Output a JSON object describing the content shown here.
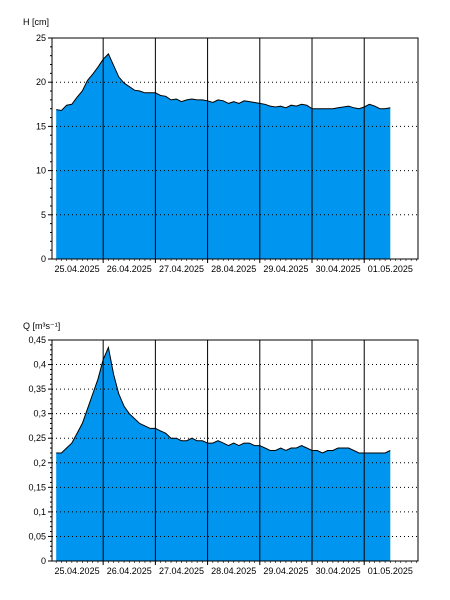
{
  "chart_data": [
    {
      "type": "area",
      "ylabel": "H [cm]",
      "ylim": [
        0,
        25
      ],
      "yticks": [
        0,
        5,
        10,
        15,
        20,
        25
      ],
      "ytick_labels": [
        "0",
        "5",
        "10",
        "15",
        "20",
        "25"
      ],
      "xticks": [
        "25.04.2025",
        "26.04.2025",
        "27.04.2025",
        "28.04.2025",
        "29.04.2025",
        "30.04.2025",
        "01.05.2025"
      ],
      "xlim_days": [
        -0.08,
        6.93
      ],
      "x_days": [
        0.0,
        0.1,
        0.2,
        0.3,
        0.4,
        0.5,
        0.6,
        0.7,
        0.8,
        0.9,
        1.0,
        1.1,
        1.2,
        1.3,
        1.4,
        1.5,
        1.6,
        1.7,
        1.8,
        1.9,
        2.0,
        2.1,
        2.2,
        2.3,
        2.4,
        2.5,
        2.6,
        2.7,
        2.8,
        2.9,
        3.0,
        3.1,
        3.2,
        3.3,
        3.4,
        3.5,
        3.6,
        3.7,
        3.8,
        3.9,
        4.0,
        4.1,
        4.2,
        4.3,
        4.4,
        4.5,
        4.6,
        4.7,
        4.8,
        4.9,
        5.0,
        5.1,
        5.2,
        5.3,
        5.4,
        5.5,
        5.6,
        5.7,
        5.8,
        5.9,
        6.0,
        6.1,
        6.2,
        6.3,
        6.4
      ],
      "values": [
        16.9,
        16.8,
        17.4,
        17.5,
        18.3,
        19.0,
        20.2,
        20.9,
        21.7,
        22.6,
        23.2,
        21.9,
        20.6,
        19.9,
        19.5,
        19.1,
        19.0,
        18.8,
        18.8,
        18.8,
        18.5,
        18.4,
        18.0,
        18.1,
        17.8,
        18.0,
        18.1,
        18.0,
        18.0,
        17.9,
        17.7,
        18.0,
        17.9,
        17.6,
        17.8,
        17.6,
        17.9,
        17.8,
        17.7,
        17.6,
        17.5,
        17.3,
        17.2,
        17.3,
        17.1,
        17.4,
        17.3,
        17.5,
        17.4,
        17.0,
        17.0,
        17.0,
        17.0,
        17.0,
        17.1,
        17.2,
        17.3,
        17.1,
        17.0,
        17.2,
        17.5,
        17.3,
        17.0,
        17.0,
        17.1
      ],
      "fill_color": "#0096f0",
      "line_color": "#000000",
      "grid": true
    },
    {
      "type": "area",
      "ylabel": "Q [m³s⁻¹]",
      "ylim": [
        0,
        0.45
      ],
      "yticks": [
        0,
        0.05,
        0.1,
        0.15,
        0.2,
        0.25,
        0.3,
        0.35,
        0.4,
        0.45
      ],
      "ytick_labels": [
        "0",
        "0,05",
        "0,1",
        "0,15",
        "0,2",
        "0,25",
        "0,3",
        "0,35",
        "0,4",
        "0,45"
      ],
      "xticks": [
        "25.04.2025",
        "26.04.2025",
        "27.04.2025",
        "28.04.2025",
        "29.04.2025",
        "30.04.2025",
        "01.05.2025"
      ],
      "xlim_days": [
        -0.08,
        6.93
      ],
      "x_days": [
        0.0,
        0.1,
        0.2,
        0.3,
        0.4,
        0.5,
        0.6,
        0.7,
        0.8,
        0.9,
        1.0,
        1.1,
        1.2,
        1.3,
        1.4,
        1.5,
        1.6,
        1.7,
        1.8,
        1.9,
        2.0,
        2.1,
        2.2,
        2.3,
        2.4,
        2.5,
        2.6,
        2.7,
        2.8,
        2.9,
        3.0,
        3.1,
        3.2,
        3.3,
        3.4,
        3.5,
        3.6,
        3.7,
        3.8,
        3.9,
        4.0,
        4.1,
        4.2,
        4.3,
        4.4,
        4.5,
        4.6,
        4.7,
        4.8,
        4.9,
        5.0,
        5.1,
        5.2,
        5.3,
        5.4,
        5.5,
        5.6,
        5.7,
        5.8,
        5.9,
        6.0,
        6.1,
        6.2,
        6.3,
        6.4
      ],
      "values": [
        0.22,
        0.22,
        0.23,
        0.24,
        0.26,
        0.28,
        0.31,
        0.34,
        0.37,
        0.41,
        0.435,
        0.38,
        0.34,
        0.315,
        0.3,
        0.29,
        0.28,
        0.275,
        0.27,
        0.27,
        0.265,
        0.26,
        0.25,
        0.25,
        0.245,
        0.245,
        0.25,
        0.245,
        0.245,
        0.24,
        0.24,
        0.245,
        0.24,
        0.235,
        0.24,
        0.235,
        0.24,
        0.24,
        0.235,
        0.235,
        0.23,
        0.225,
        0.225,
        0.23,
        0.225,
        0.23,
        0.23,
        0.235,
        0.23,
        0.225,
        0.225,
        0.22,
        0.225,
        0.225,
        0.23,
        0.23,
        0.23,
        0.225,
        0.22,
        0.22,
        0.22,
        0.22,
        0.22,
        0.22,
        0.225
      ],
      "fill_color": "#0096f0",
      "line_color": "#000000",
      "grid": true
    }
  ]
}
